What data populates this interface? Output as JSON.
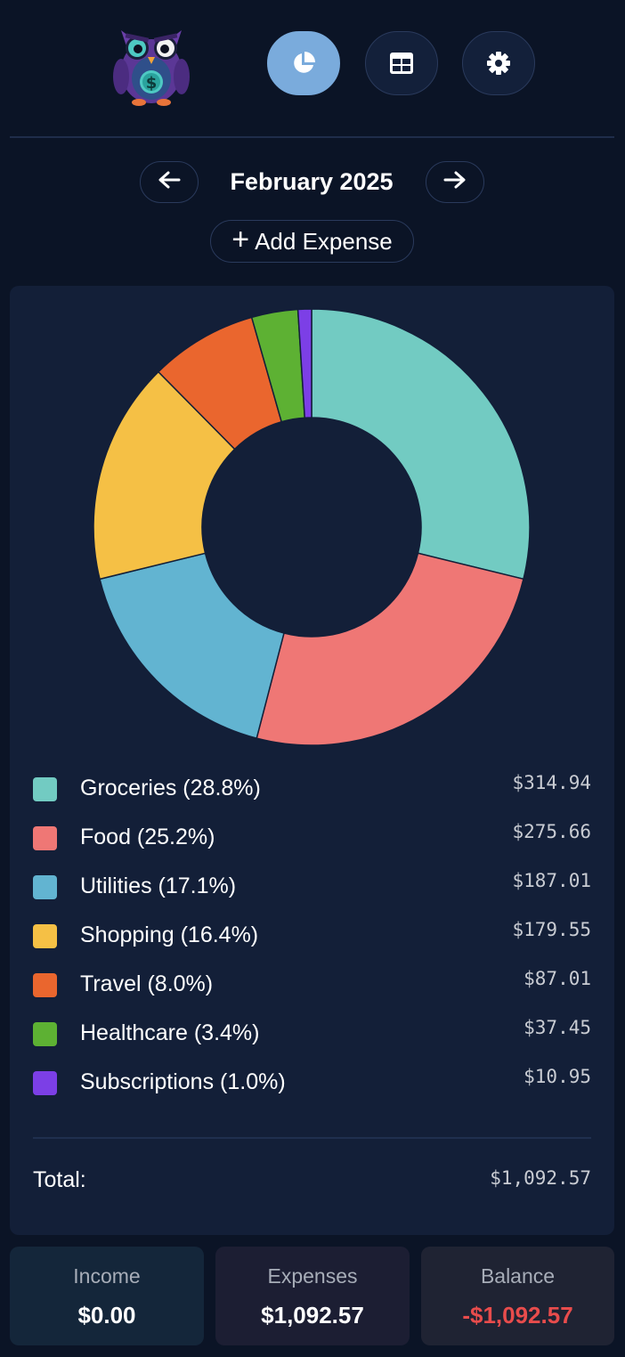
{
  "nav": {
    "logo_icon": "owl-mascot-logo",
    "buttons": [
      {
        "icon": "pie-chart-icon",
        "active": true
      },
      {
        "icon": "table-icon",
        "active": false
      },
      {
        "icon": "gear-icon",
        "active": false
      }
    ]
  },
  "month_nav": {
    "label": "February 2025",
    "prev_icon": "arrow-left-icon",
    "next_icon": "arrow-right-icon"
  },
  "add_expense": {
    "icon": "+",
    "label": "Add Expense"
  },
  "chart_data": {
    "type": "pie",
    "style": "donut",
    "categories": [
      "Groceries",
      "Food",
      "Utilities",
      "Shopping",
      "Travel",
      "Healthcare",
      "Subscriptions"
    ],
    "values": [
      314.94,
      275.66,
      187.01,
      179.55,
      87.01,
      37.45,
      10.95
    ],
    "colors": [
      "#72cbc2",
      "#ef7775",
      "#62b4d1",
      "#f5c045",
      "#ea662e",
      "#5db133",
      "#7c3fe6"
    ]
  },
  "legend": [
    {
      "label": "Groceries (28.8%)",
      "amount": "$314.94",
      "color": "#72cbc2"
    },
    {
      "label": "Food (25.2%)",
      "amount": "$275.66",
      "color": "#ef7775"
    },
    {
      "label": "Utilities (17.1%)",
      "amount": "$187.01",
      "color": "#62b4d1"
    },
    {
      "label": "Shopping (16.4%)",
      "amount": "$179.55",
      "color": "#f5c045"
    },
    {
      "label": "Travel (8.0%)",
      "amount": "$87.01",
      "color": "#ea662e"
    },
    {
      "label": "Healthcare (3.4%)",
      "amount": "$37.45",
      "color": "#5db133"
    },
    {
      "label": "Subscriptions (1.0%)",
      "amount": "$10.95",
      "color": "#7c3fe6"
    }
  ],
  "total": {
    "label": "Total:",
    "amount": "$1,092.57"
  },
  "summary": {
    "income": {
      "label": "Income",
      "value": "$0.00",
      "bg": "#14263a",
      "color": "#ffffff"
    },
    "expenses": {
      "label": "Expenses",
      "value": "$1,092.57",
      "bg": "#1c1e33",
      "color": "#ffffff"
    },
    "balance": {
      "label": "Balance",
      "value": "-$1,092.57",
      "bg": "#1f2333",
      "color": "#e84c4c"
    }
  }
}
